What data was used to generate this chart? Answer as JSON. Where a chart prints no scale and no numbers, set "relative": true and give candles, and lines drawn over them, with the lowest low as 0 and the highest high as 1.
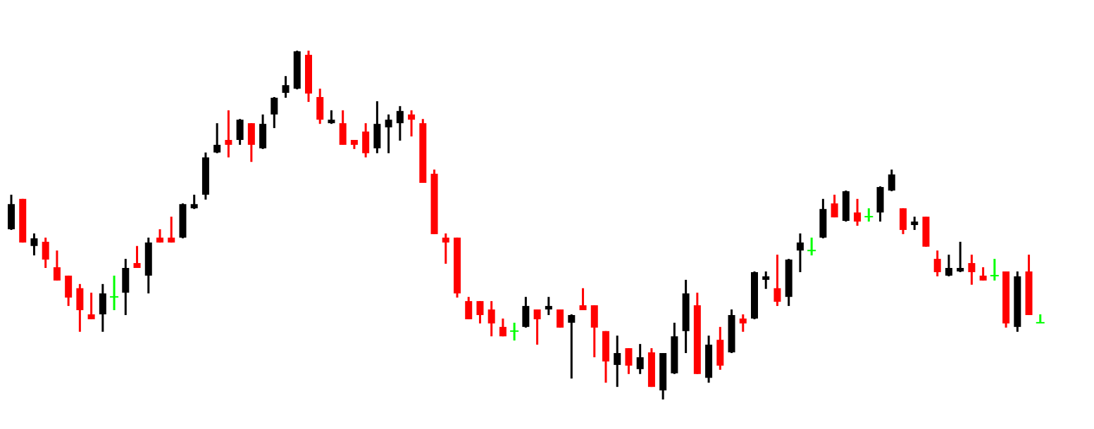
{
  "chart_data": {
    "type": "candlestick",
    "relative": true,
    "categories": [
      null,
      null,
      null,
      null,
      null,
      null,
      null,
      null,
      null,
      null,
      null,
      null,
      null,
      null,
      null,
      null,
      null,
      null,
      null,
      null,
      null,
      null,
      null,
      null,
      null,
      null,
      null,
      null,
      null,
      null,
      null,
      null,
      null,
      null,
      null,
      null,
      null,
      null,
      null,
      null,
      null,
      null,
      null,
      null,
      null,
      null,
      null,
      null,
      null,
      null,
      null,
      null,
      null,
      null,
      null,
      null,
      null,
      null,
      null,
      null,
      null,
      null,
      null,
      null,
      null,
      null,
      null,
      null,
      null,
      null,
      null,
      null,
      null,
      null,
      null,
      null,
      null,
      null,
      null,
      null,
      null,
      null,
      null,
      null,
      null,
      null,
      null,
      null,
      null,
      null,
      null
    ],
    "ohlc": [
      [
        0.488,
        0.587,
        0.486,
        0.56
      ],
      [
        0.575,
        0.575,
        0.45,
        0.45
      ],
      [
        0.44,
        0.476,
        0.413,
        0.462
      ],
      [
        0.452,
        0.464,
        0.377,
        0.401
      ],
      [
        0.379,
        0.427,
        0.341,
        0.341
      ],
      [
        0.355,
        0.355,
        0.268,
        0.292
      ],
      [
        0.319,
        0.331,
        0.194,
        0.256
      ],
      [
        0.244,
        0.306,
        0.23,
        0.23
      ],
      [
        0.244,
        0.331,
        0.194,
        0.304
      ],
      [
        0.294,
        0.355,
        0.256,
        0.294
      ],
      [
        0.306,
        0.403,
        0.242,
        0.377
      ],
      [
        0.391,
        0.44,
        0.377,
        0.377
      ],
      [
        0.355,
        0.464,
        0.304,
        0.45
      ],
      [
        0.464,
        0.488,
        0.45,
        0.45
      ],
      [
        0.464,
        0.524,
        0.45,
        0.45
      ],
      [
        0.464,
        0.562,
        0.462,
        0.56
      ],
      [
        0.548,
        0.587,
        0.546,
        0.56
      ],
      [
        0.587,
        0.708,
        0.573,
        0.694
      ],
      [
        0.708,
        0.792,
        0.706,
        0.73
      ],
      [
        0.744,
        0.829,
        0.694,
        0.73
      ],
      [
        0.744,
        0.804,
        0.73,
        0.802
      ],
      [
        0.792,
        0.792,
        0.681,
        0.73
      ],
      [
        0.72,
        0.817,
        0.718,
        0.79
      ],
      [
        0.817,
        0.867,
        0.778,
        0.865
      ],
      [
        0.879,
        0.927,
        0.865,
        0.901
      ],
      [
        0.891,
        1,
        0.889,
        0.998
      ],
      [
        0.988,
        1,
        0.853,
        0.877
      ],
      [
        0.867,
        0.891,
        0.79,
        0.802
      ],
      [
        0.792,
        0.829,
        0.79,
        0.802
      ],
      [
        0.792,
        0.829,
        0.73,
        0.73
      ],
      [
        0.744,
        0.744,
        0.718,
        0.73
      ],
      [
        0.768,
        0.792,
        0.694,
        0.706
      ],
      [
        0.72,
        0.855,
        0.706,
        0.79
      ],
      [
        0.78,
        0.817,
        0.706,
        0.802
      ],
      [
        0.792,
        0.841,
        0.742,
        0.827
      ],
      [
        0.817,
        0.829,
        0.754,
        0.802
      ],
      [
        0.792,
        0.804,
        0.621,
        0.621
      ],
      [
        0.647,
        0.659,
        0.474,
        0.474
      ],
      [
        0.464,
        0.476,
        0.389,
        0.45
      ],
      [
        0.464,
        0.464,
        0.292,
        0.304
      ],
      [
        0.282,
        0.294,
        0.23,
        0.23
      ],
      [
        0.282,
        0.282,
        0.218,
        0.242
      ],
      [
        0.258,
        0.282,
        0.181,
        0.218
      ],
      [
        0.208,
        0.232,
        0.181,
        0.181
      ],
      [
        0.196,
        0.22,
        0.169,
        0.196
      ],
      [
        0.208,
        0.294,
        0.206,
        0.268
      ],
      [
        0.258,
        0.258,
        0.157,
        0.23
      ],
      [
        0.258,
        0.294,
        0.242,
        0.268
      ],
      [
        0.258,
        0.258,
        0.206,
        0.206
      ],
      [
        0.22,
        0.244,
        0.06,
        0.242
      ],
      [
        0.27,
        0.319,
        0.256,
        0.256
      ],
      [
        0.27,
        0.27,
        0.121,
        0.206
      ],
      [
        0.196,
        0.196,
        0.048,
        0.109
      ],
      [
        0.099,
        0.183,
        0.036,
        0.133
      ],
      [
        0.147,
        0.147,
        0.073,
        0.097
      ],
      [
        0.087,
        0.159,
        0.073,
        0.121
      ],
      [
        0.135,
        0.147,
        0.036,
        0.036
      ],
      [
        0.026,
        0.133,
        0,
        0.133
      ],
      [
        0.075,
        0.22,
        0.073,
        0.181
      ],
      [
        0.196,
        0.343,
        0.133,
        0.304
      ],
      [
        0.27,
        0.306,
        0.073,
        0.073
      ],
      [
        0.062,
        0.183,
        0.048,
        0.157
      ],
      [
        0.171,
        0.208,
        0.085,
        0.097
      ],
      [
        0.135,
        0.258,
        0.133,
        0.242
      ],
      [
        0.232,
        0.244,
        0.194,
        0.218
      ],
      [
        0.232,
        0.367,
        0.23,
        0.365
      ],
      [
        0.343,
        0.367,
        0.317,
        0.353
      ],
      [
        0.319,
        0.415,
        0.268,
        0.28
      ],
      [
        0.294,
        0.403,
        0.268,
        0.401
      ],
      [
        0.427,
        0.476,
        0.365,
        0.45
      ],
      [
        0.427,
        0.464,
        0.413,
        0.427
      ],
      [
        0.464,
        0.575,
        0.462,
        0.546
      ],
      [
        0.562,
        0.587,
        0.522,
        0.522
      ],
      [
        0.512,
        0.599,
        0.51,
        0.597
      ],
      [
        0.536,
        0.575,
        0.498,
        0.51
      ],
      [
        0.524,
        0.548,
        0.51,
        0.524
      ],
      [
        0.536,
        0.611,
        0.51,
        0.609
      ],
      [
        0.599,
        0.659,
        0.597,
        0.645
      ],
      [
        0.548,
        0.548,
        0.474,
        0.486
      ],
      [
        0.5,
        0.524,
        0.486,
        0.51
      ],
      [
        0.524,
        0.524,
        0.438,
        0.438
      ],
      [
        0.403,
        0.427,
        0.353,
        0.365
      ],
      [
        0.355,
        0.415,
        0.353,
        0.377
      ],
      [
        0.367,
        0.452,
        0.365,
        0.377
      ],
      [
        0.391,
        0.415,
        0.329,
        0.365
      ],
      [
        0.355,
        0.379,
        0.341,
        0.341
      ],
      [
        0.355,
        0.403,
        0.341,
        0.355
      ],
      [
        0.367,
        0.367,
        0.206,
        0.218
      ],
      [
        0.208,
        0.367,
        0.194,
        0.353
      ],
      [
        0.367,
        0.415,
        0.242,
        0.242
      ],
      [
        0.22,
        0.244,
        0.22,
        0.22
      ]
    ],
    "colors": [
      "#000000",
      "#ff0000",
      "#000000",
      "#ff0000",
      "#ff0000",
      "#ff0000",
      "#ff0000",
      "#ff0000",
      "#000000",
      "#00ff00",
      "#000000",
      "#ff0000",
      "#000000",
      "#ff0000",
      "#ff0000",
      "#000000",
      "#000000",
      "#000000",
      "#000000",
      "#ff0000",
      "#000000",
      "#ff0000",
      "#000000",
      "#000000",
      "#000000",
      "#000000",
      "#ff0000",
      "#ff0000",
      "#000000",
      "#ff0000",
      "#ff0000",
      "#ff0000",
      "#000000",
      "#000000",
      "#000000",
      "#ff0000",
      "#ff0000",
      "#ff0000",
      "#ff0000",
      "#ff0000",
      "#ff0000",
      "#ff0000",
      "#ff0000",
      "#ff0000",
      "#00ff00",
      "#000000",
      "#ff0000",
      "#000000",
      "#ff0000",
      "#000000",
      "#ff0000",
      "#ff0000",
      "#ff0000",
      "#000000",
      "#ff0000",
      "#000000",
      "#ff0000",
      "#000000",
      "#000000",
      "#000000",
      "#ff0000",
      "#000000",
      "#ff0000",
      "#000000",
      "#ff0000",
      "#000000",
      "#000000",
      "#ff0000",
      "#000000",
      "#000000",
      "#00ff00",
      "#000000",
      "#ff0000",
      "#000000",
      "#ff0000",
      "#00ff00",
      "#000000",
      "#000000",
      "#ff0000",
      "#000000",
      "#ff0000",
      "#ff0000",
      "#000000",
      "#000000",
      "#ff0000",
      "#ff0000",
      "#00ff00",
      "#ff0000",
      "#000000",
      "#ff0000",
      "#00ff00"
    ]
  }
}
